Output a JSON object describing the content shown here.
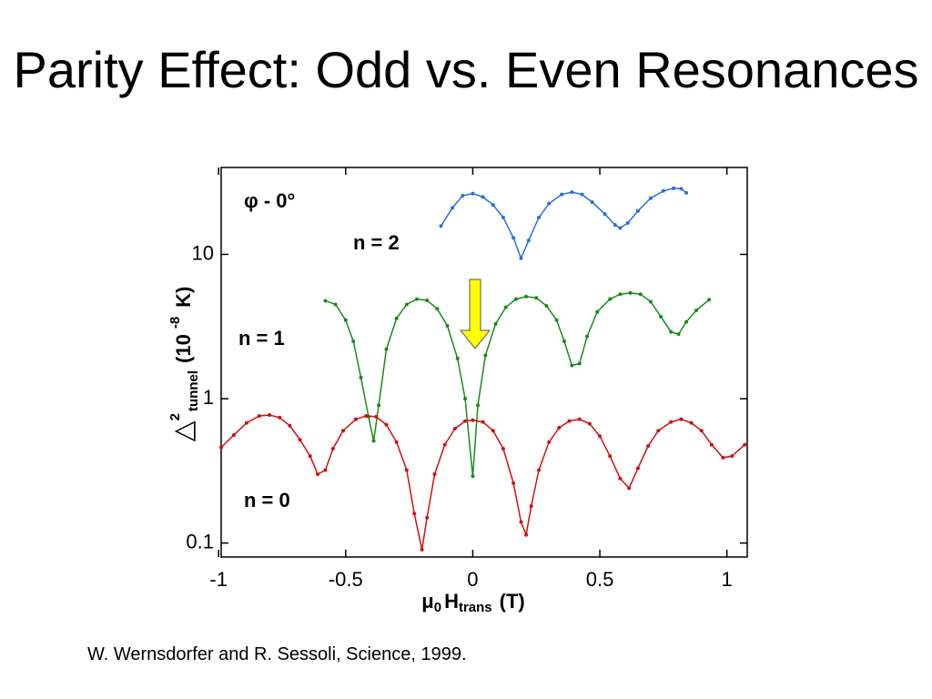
{
  "title": "Parity Effect: Odd vs. Even Resonances",
  "citation": "W. Wernsdorfer and R. Sessoli, Science, 1999.",
  "chart_data": {
    "type": "line",
    "annotation": "φ - 0°",
    "ylabel": {
      "symbol": "△",
      "sup": "2",
      "sub": "tunnel",
      "unit": "(10",
      "exp": "-8",
      "unit_end": "K)"
    },
    "xlabel": {
      "symbol": "μ",
      "sub": "0",
      "main": "H",
      "main_sub": "trans",
      "unit": "(T)"
    },
    "xlim": [
      -0.99,
      1.08
    ],
    "xticks": [
      -1,
      -0.5,
      0,
      0.5,
      1
    ],
    "ylim": [
      0.08,
      40
    ],
    "yticks": [
      0.1,
      1,
      10
    ],
    "log_y": true,
    "series": [
      {
        "name": "n = 2",
        "color": "#2a6fd6",
        "x": [
          -0.125,
          -0.08,
          -0.04,
          0.0,
          0.04,
          0.08,
          0.12,
          0.16,
          0.19,
          0.22,
          0.26,
          0.3,
          0.35,
          0.39,
          0.43,
          0.47,
          0.52,
          0.56,
          0.58,
          0.61,
          0.65,
          0.7,
          0.75,
          0.79,
          0.82,
          0.84
        ],
        "values": [
          15.7,
          21,
          25.5,
          26.4,
          25,
          22,
          18,
          13,
          9.4,
          12.5,
          18,
          22.5,
          26,
          27,
          26,
          23,
          19,
          16,
          15.2,
          16.5,
          20,
          24.5,
          27.5,
          28.7,
          28.5,
          26.7
        ]
      },
      {
        "name": "n = 1",
        "color": "#1a8a1a",
        "x": [
          -0.58,
          -0.54,
          -0.5,
          -0.47,
          -0.44,
          -0.41,
          -0.39,
          -0.37,
          -0.34,
          -0.3,
          -0.26,
          -0.22,
          -0.18,
          -0.14,
          -0.1,
          -0.06,
          -0.03,
          0.0,
          0.02,
          0.05,
          0.09,
          0.13,
          0.17,
          0.21,
          0.25,
          0.29,
          0.33,
          0.36,
          0.39,
          0.42,
          0.45,
          0.49,
          0.54,
          0.58,
          0.62,
          0.66,
          0.7,
          0.74,
          0.78,
          0.81,
          0.84,
          0.88,
          0.93
        ],
        "values": [
          4.77,
          4.5,
          3.5,
          2.5,
          1.4,
          0.75,
          0.51,
          0.9,
          2.2,
          3.6,
          4.5,
          4.9,
          4.8,
          4.2,
          3.2,
          1.9,
          1.0,
          0.29,
          0.9,
          2.0,
          3.3,
          4.3,
          4.9,
          5.1,
          5.0,
          4.4,
          3.5,
          2.5,
          1.7,
          1.75,
          2.7,
          4.0,
          4.9,
          5.3,
          5.4,
          5.3,
          4.7,
          3.7,
          2.9,
          2.8,
          3.4,
          4.1,
          4.85
        ]
      },
      {
        "name": "n = 0",
        "color": "#cc1111",
        "x": [
          -0.99,
          -0.94,
          -0.89,
          -0.84,
          -0.8,
          -0.76,
          -0.72,
          -0.68,
          -0.64,
          -0.61,
          -0.58,
          -0.55,
          -0.51,
          -0.46,
          -0.42,
          -0.38,
          -0.34,
          -0.3,
          -0.26,
          -0.23,
          -0.2,
          -0.18,
          -0.15,
          -0.11,
          -0.07,
          -0.03,
          0.0,
          0.04,
          0.08,
          0.12,
          0.16,
          0.19,
          0.21,
          0.23,
          0.26,
          0.3,
          0.34,
          0.38,
          0.42,
          0.46,
          0.5,
          0.54,
          0.58,
          0.615,
          0.65,
          0.69,
          0.73,
          0.78,
          0.82,
          0.86,
          0.9,
          0.94,
          0.985,
          1.02,
          1.07
        ],
        "values": [
          0.46,
          0.56,
          0.68,
          0.76,
          0.77,
          0.74,
          0.65,
          0.52,
          0.4,
          0.3,
          0.32,
          0.45,
          0.6,
          0.72,
          0.76,
          0.75,
          0.66,
          0.5,
          0.32,
          0.16,
          0.09,
          0.15,
          0.3,
          0.48,
          0.62,
          0.7,
          0.71,
          0.69,
          0.6,
          0.45,
          0.26,
          0.14,
          0.114,
          0.18,
          0.32,
          0.5,
          0.63,
          0.7,
          0.72,
          0.67,
          0.55,
          0.4,
          0.28,
          0.24,
          0.33,
          0.47,
          0.6,
          0.69,
          0.72,
          0.68,
          0.6,
          0.48,
          0.39,
          0.4,
          0.48
        ]
      }
    ]
  }
}
